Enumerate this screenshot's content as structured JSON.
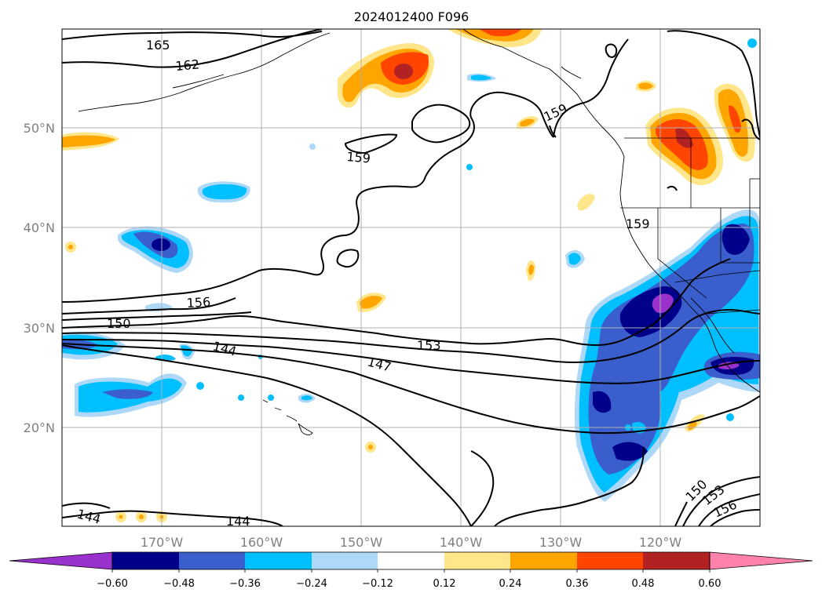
{
  "title": "2024012400 F096",
  "map": {
    "lat_labels": [
      "50°N",
      "40°N",
      "30°N",
      "20°N"
    ],
    "lon_labels": [
      "170°W",
      "160°W",
      "150°W",
      "140°W",
      "130°W",
      "120°W"
    ],
    "contour_labels": [
      "165",
      "162",
      "159",
      "159",
      "159",
      "156",
      "150",
      "144",
      "153",
      "147",
      "150",
      "153",
      "156",
      "144",
      "144"
    ]
  },
  "colorbar": {
    "tick_labels": [
      "−0.60",
      "−0.48",
      "−0.36",
      "−0.24",
      "−0.12",
      "0.12",
      "0.24",
      "0.36",
      "0.48",
      "0.60"
    ],
    "colors": [
      "#9932cc",
      "#00008b",
      "#3a5fcd",
      "#00bfff",
      "#add8f7",
      "#ffffff",
      "#ffe68a",
      "#ffa500",
      "#ff4500",
      "#b22222",
      "#ff82ab"
    ]
  },
  "colors": {
    "neg_1": "#add8f7",
    "neg_2": "#00bfff",
    "neg_3": "#3a5fcd",
    "neg_4": "#00008b",
    "neg_5": "#9932cc",
    "pos_1": "#ffe68a",
    "pos_2": "#ffa500",
    "pos_3": "#ff4500",
    "pos_4": "#b22222"
  }
}
